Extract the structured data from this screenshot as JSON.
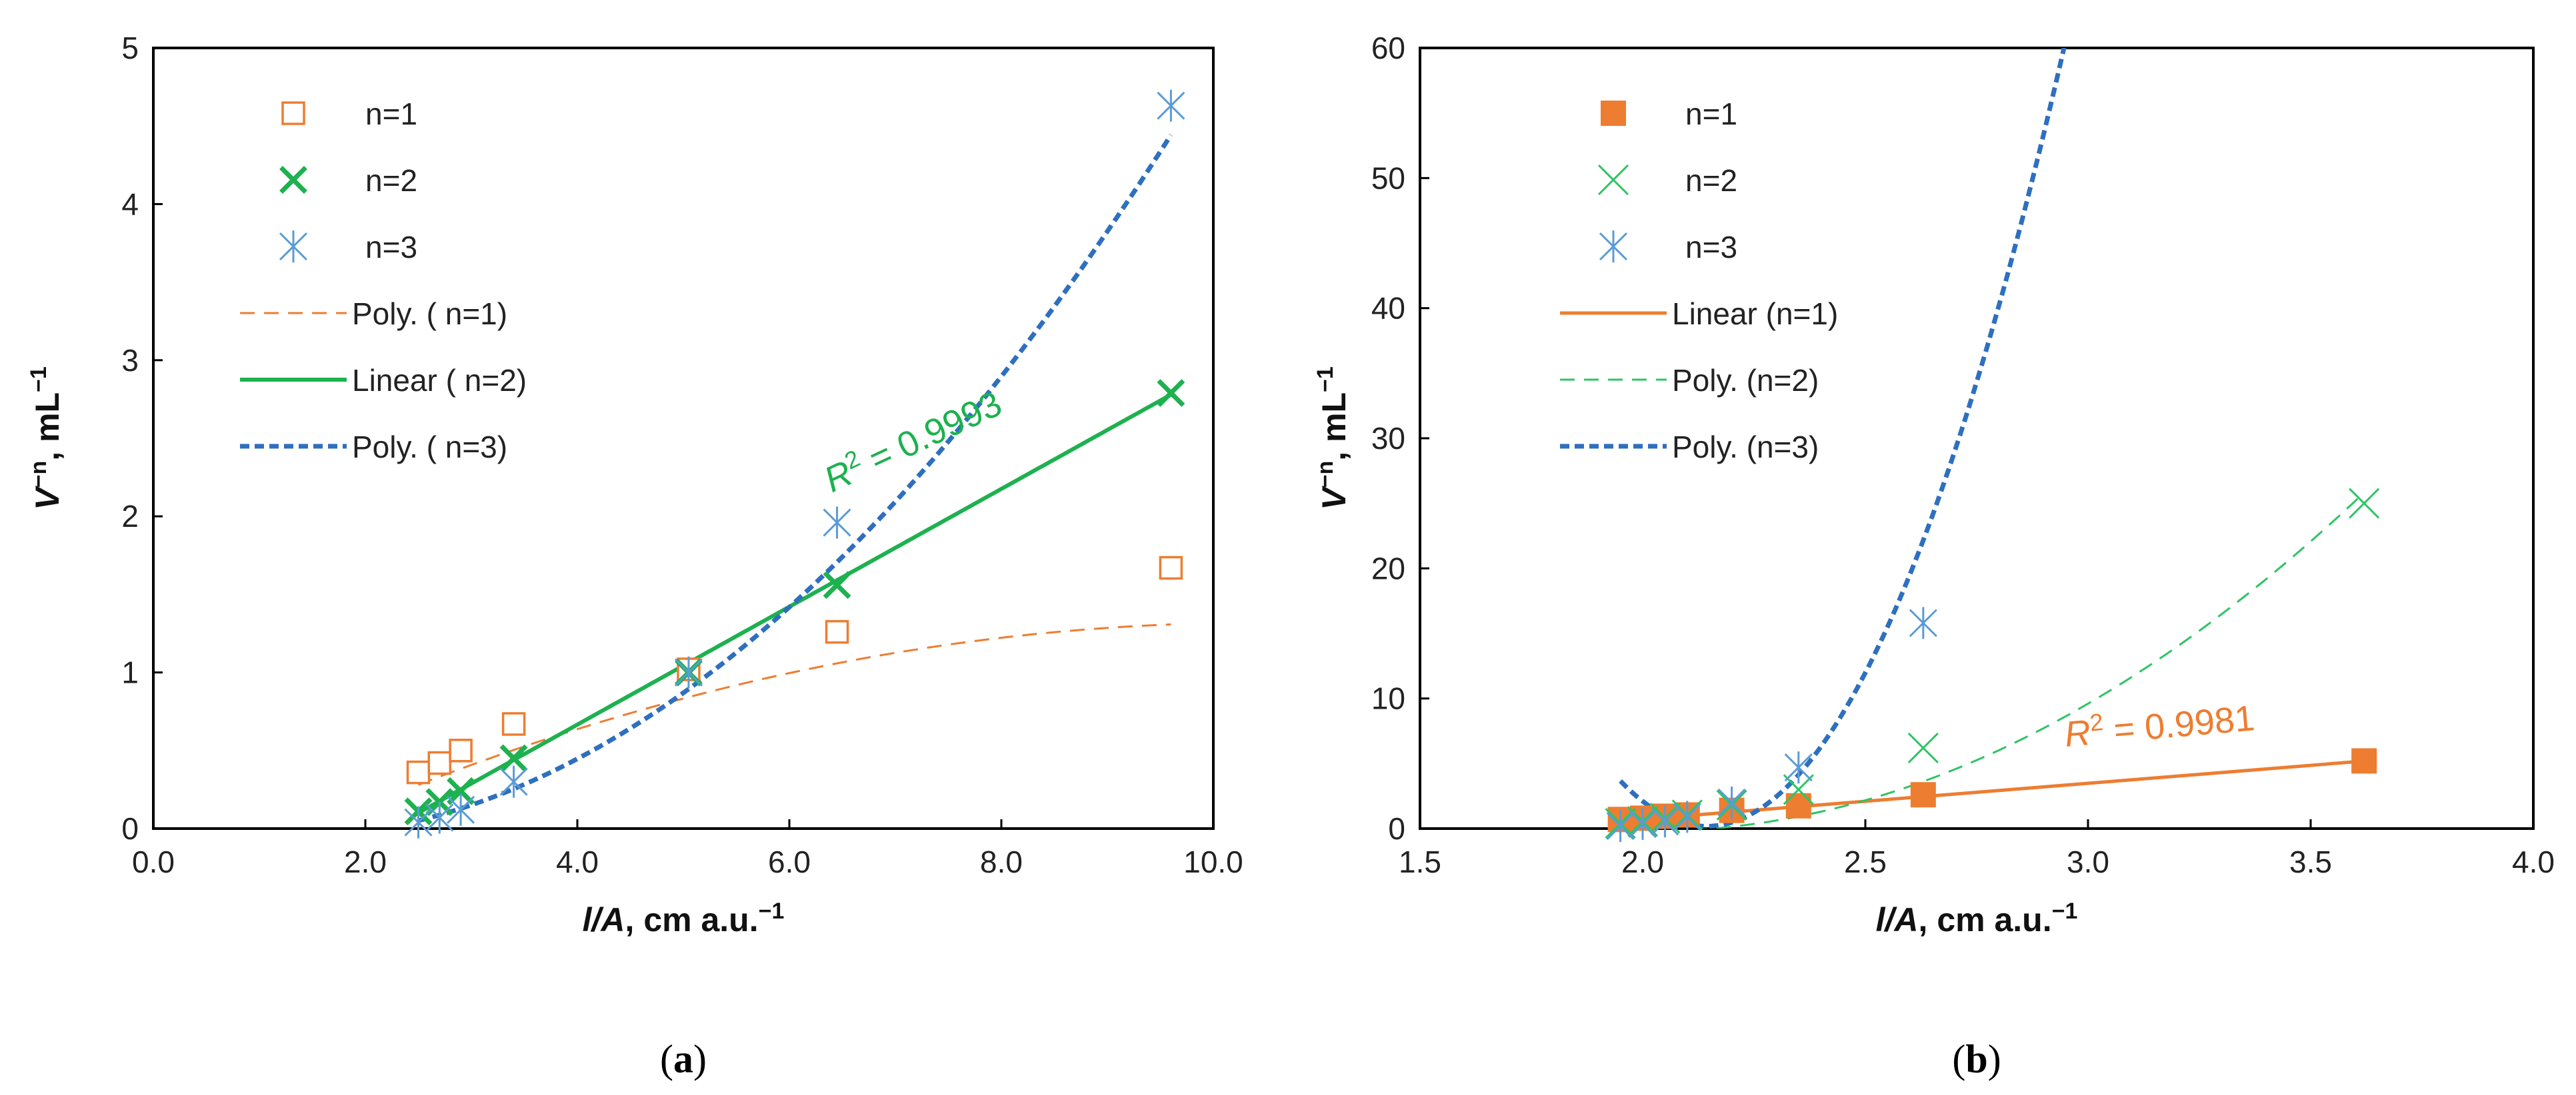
{
  "colors": {
    "orange": "#ED7D31",
    "green": "#1DB14F",
    "lightgreen": "#2EC464",
    "blue": "#2E6FBF",
    "lightblue": "#5B9BD5",
    "axis": "#000000",
    "text": "#222222"
  },
  "chart_data": [
    {
      "type": "scatter",
      "panel_label": "a",
      "xlabel_italic": "l/A",
      "xlabel_rest": ", cm a.u.",
      "xlabel_sup": "−1",
      "ylabel_italic": "V",
      "ylabel_sup": "−n",
      "ylabel_rest": ", mL",
      "ylabel_sup2": "−1",
      "xlim": [
        0,
        10
      ],
      "ylim": [
        0,
        5
      ],
      "xticks": [
        "0.0",
        "2.0",
        "4.0",
        "6.0",
        "8.0",
        "10.0"
      ],
      "yticks": [
        "0",
        "1",
        "2",
        "3",
        "4",
        "5"
      ],
      "legend": [
        "n=1",
        "n=2",
        "n=3",
        "Poly. ( n=1)",
        "Linear ( n=2)",
        "Poly. ( n=3)"
      ],
      "series": [
        {
          "name": "n=1",
          "marker": "open-square",
          "color": "orange",
          "x": [
            2.5,
            2.7,
            2.9,
            3.4,
            5.05,
            6.45,
            9.6
          ],
          "y": [
            0.36,
            0.42,
            0.5,
            0.67,
            1.02,
            1.26,
            1.67
          ]
        },
        {
          "name": "n=2",
          "marker": "bold-x",
          "color": "green",
          "x": [
            2.5,
            2.7,
            2.9,
            3.4,
            5.05,
            6.45,
            9.6
          ],
          "y": [
            0.11,
            0.17,
            0.24,
            0.45,
            1.0,
            1.56,
            2.79
          ]
        },
        {
          "name": "n=3",
          "marker": "asterisk",
          "color": "lightblue",
          "x": [
            2.5,
            2.7,
            2.9,
            3.4,
            5.05,
            6.45,
            9.6
          ],
          "y": [
            0.04,
            0.07,
            0.12,
            0.3,
            1.0,
            1.96,
            4.63
          ]
        }
      ],
      "fits": [
        {
          "name": "Poly. ( n=1)",
          "kind": "poly",
          "coef": [
            -0.4795,
            0.3455,
            -0.0166
          ],
          "x_range": [
            2.5,
            9.6
          ],
          "color": "orange",
          "style": "dashed"
        },
        {
          "name": "Linear ( n=2)",
          "kind": "poly",
          "coef": [
            -0.8436,
            0.3774,
            0
          ],
          "x_range": [
            2.5,
            9.6
          ],
          "color": "green",
          "style": "solid"
        },
        {
          "name": "Poly. ( n=3)",
          "kind": "poly",
          "coef": [
            0.0232,
            -0.1473,
            0.0633
          ],
          "x_range": [
            2.5,
            9.6
          ],
          "color": "blue",
          "style": "dotted"
        }
      ],
      "annotation": {
        "prefix": "R",
        "sup": "2",
        "value": " = 0.9993",
        "color": "green",
        "x": 6.4,
        "y": 2.15,
        "angle": -25
      }
    },
    {
      "type": "scatter",
      "panel_label": "b",
      "xlabel_italic": "l/A",
      "xlabel_rest": ", cm a.u.",
      "xlabel_sup": "−1",
      "ylabel_italic": "V",
      "ylabel_sup": "−n",
      "ylabel_rest": ", mL",
      "ylabel_sup2": "−1",
      "xlim": [
        1.5,
        4.0
      ],
      "ylim": [
        0,
        60
      ],
      "xticks": [
        "1.5",
        "2.0",
        "2.5",
        "3.0",
        "3.5",
        "4.0"
      ],
      "yticks": [
        "0",
        "10",
        "20",
        "30",
        "40",
        "50",
        "60"
      ],
      "legend": [
        "n=1",
        "n=2",
        "n=3",
        "Linear (n=1)",
        "Poly. (n=2)",
        "Poly. (n=3)"
      ],
      "series": [
        {
          "name": "n=1",
          "marker": "filled-square",
          "color": "orange",
          "x": [
            1.95,
            2.0,
            2.05,
            2.1,
            2.2,
            2.35,
            2.63,
            3.62
          ],
          "y": [
            0.7,
            0.8,
            0.95,
            1.05,
            1.4,
            1.75,
            2.6,
            5.2
          ]
        },
        {
          "name": "n=2",
          "marker": "thin-x",
          "color": "lightgreen",
          "x": [
            1.95,
            2.0,
            2.05,
            2.1,
            2.2,
            2.35,
            2.63,
            3.62
          ],
          "y": [
            0.4,
            0.55,
            0.8,
            1.05,
            1.8,
            3.0,
            6.2,
            25.0
          ]
        },
        {
          "name": "n=3",
          "marker": "asterisk",
          "color": "lightblue",
          "x": [
            1.95,
            2.0,
            2.05,
            2.1,
            2.2,
            2.35,
            2.63
          ],
          "y": [
            0.2,
            0.35,
            0.55,
            0.9,
            2.0,
            4.7,
            15.8
          ]
        }
      ],
      "fits": [
        {
          "name": "Linear (n=1)",
          "kind": "poly",
          "coef": [
            -4.8,
            2.76,
            0
          ],
          "x_range": [
            1.95,
            3.62
          ],
          "color": "orange",
          "style": "solid"
        },
        {
          "name": "Poly. (n=2)",
          "kind": "poly",
          "coef": [
            40.8,
            -40.7,
            10.1
          ],
          "x_range": [
            1.95,
            3.62
          ],
          "color": "lightgreen",
          "style": "dashed"
        },
        {
          "name": "Poly. (n=3)",
          "kind": "poly",
          "coef": [
            427.1,
            -398.3,
            92.9
          ],
          "x_range": [
            1.95,
            3.4
          ],
          "color": "blue",
          "style": "dotted"
        }
      ],
      "annotation": {
        "prefix": "R",
        "sup": "2",
        "value": " = 0.9981",
        "color": "orange",
        "x": 2.95,
        "y": 6.3,
        "angle": -5
      }
    }
  ]
}
